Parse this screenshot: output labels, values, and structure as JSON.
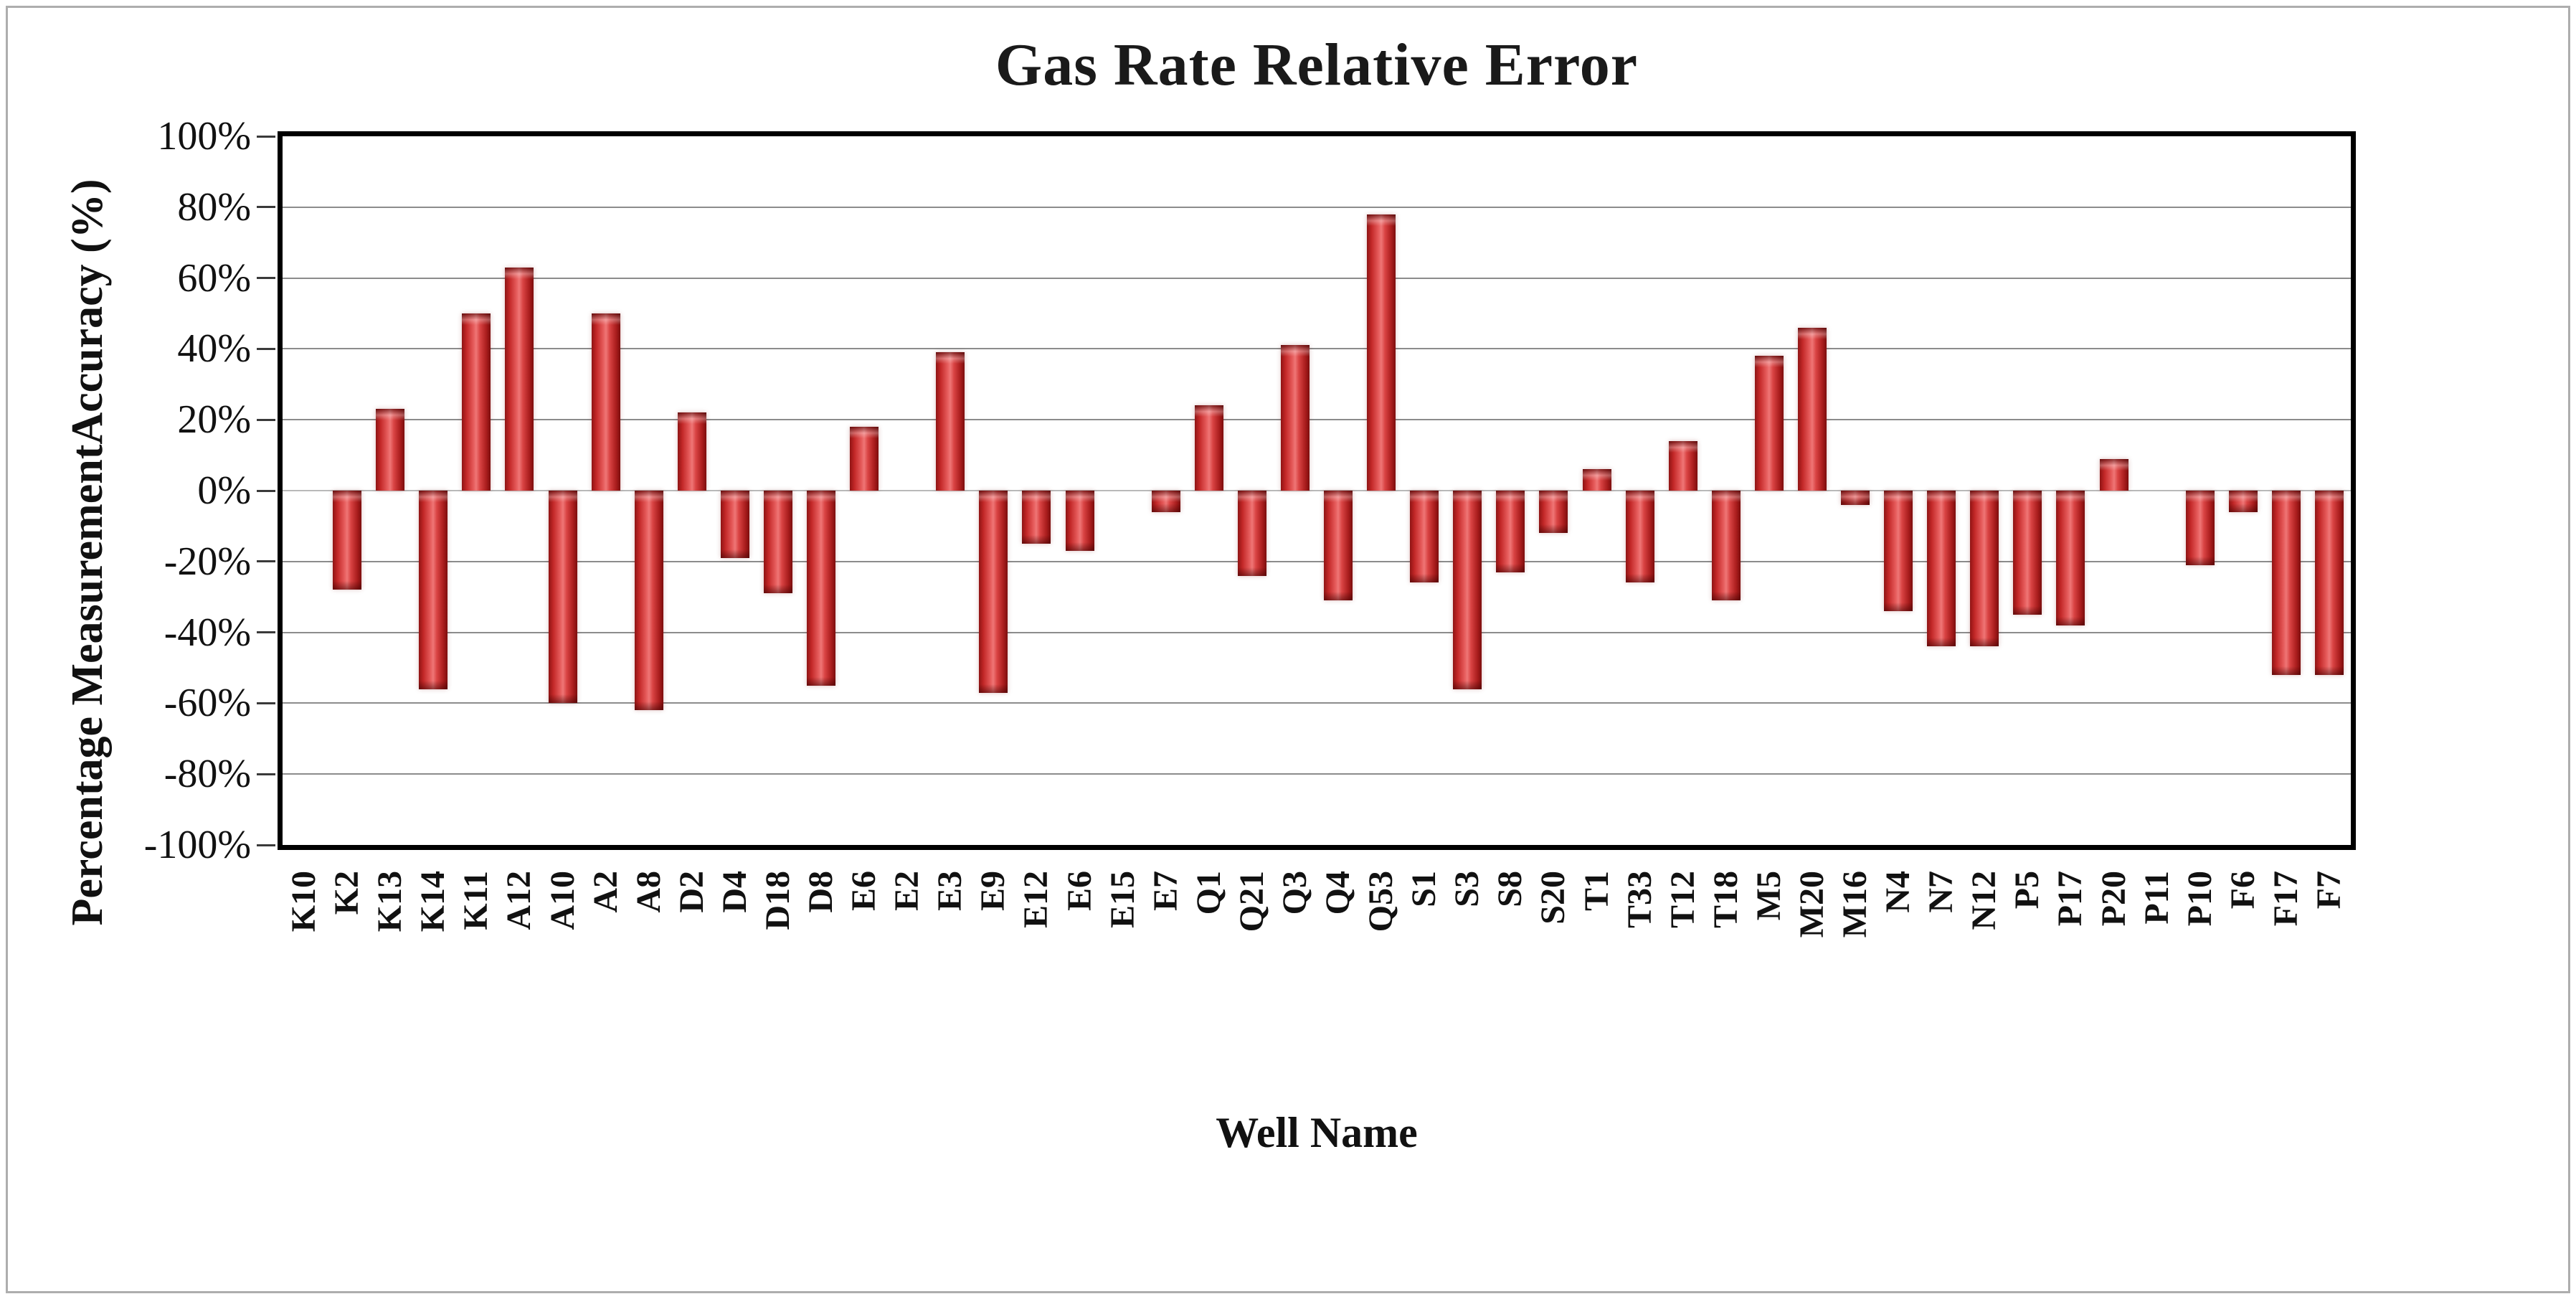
{
  "chart_data": {
    "type": "bar",
    "title": "Gas Rate Relative Error",
    "xlabel": "Well Name",
    "ylabel": "Percentage MeasurementAccuracy (%)",
    "categories": [
      "K10",
      "K2",
      "K13",
      "K14",
      "K11",
      "A12",
      "A10",
      "A2",
      "A8",
      "D2",
      "D4",
      "D18",
      "D8",
      "E6",
      "E2",
      "E3",
      "E9",
      "E12",
      "E6",
      "E15",
      "E7",
      "Q1",
      "Q21",
      "Q3",
      "Q4",
      "Q53",
      "S1",
      "S3",
      "S8",
      "S20",
      "T1",
      "T33",
      "T12",
      "T18",
      "M5",
      "M20",
      "M16",
      "N4",
      "N7",
      "N12",
      "P5",
      "P17",
      "P20",
      "P11",
      "P10",
      "F6",
      "F17",
      "F7"
    ],
    "values": [
      0,
      -28,
      23,
      -56,
      50,
      63,
      -60,
      50,
      -62,
      22,
      -19,
      -29,
      -55,
      18,
      0,
      39,
      -57,
      -15,
      -17,
      0,
      -6,
      24,
      -24,
      41,
      -31,
      78,
      -26,
      -56,
      -23,
      -12,
      6,
      -26,
      14,
      -31,
      38,
      46,
      -4,
      -34,
      -44,
      -44,
      -35,
      -38,
      9,
      0,
      -21,
      -6,
      -52,
      -52
    ],
    "ylim": [
      -100,
      100
    ],
    "ytick_step": 20,
    "ytick_labels": [
      "100%",
      "80%",
      "60%",
      "40%",
      "20%",
      "0%",
      "-20%",
      "-40%",
      "-60%",
      "-80%",
      "-100%"
    ],
    "grid": true,
    "legend": "none",
    "colors": {
      "bar_main": "#cc2a2a",
      "bar_highlight": "#ef7676",
      "bar_edge": "#8f1414",
      "gridline": "#8c8c8c",
      "axis": "#000000",
      "text": "#111111",
      "frame_border": "#aeaeae"
    }
  }
}
